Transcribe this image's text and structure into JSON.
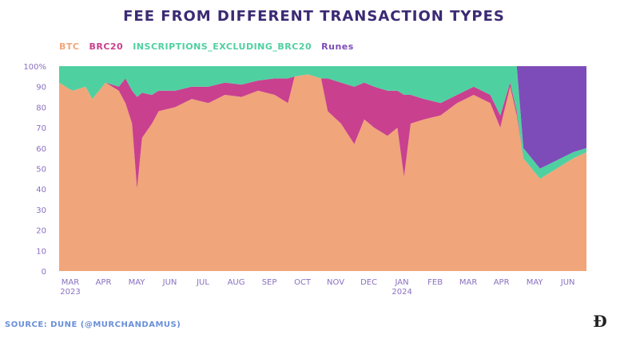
{
  "page": {
    "title": "FEE FROM DIFFERENT TRANSACTION TYPES",
    "source": "SOURCE: DUNE (@MURCHANDAMUS)"
  },
  "colors": {
    "btc": "#f0a57a",
    "brc20": "#c9408f",
    "inscriptions": "#4fd0a0",
    "runes": "#7d4cb8",
    "axis_text": "#8a6fc0",
    "title": "#3b2a73"
  },
  "chart_data": {
    "type": "area",
    "stacked": true,
    "y_unit": "%",
    "ylim": [
      0,
      100
    ],
    "y_ticks": [
      "0",
      "10",
      "20",
      "30",
      "40",
      "50",
      "60",
      "70",
      "80",
      "90",
      "100%"
    ],
    "x_ticks": [
      {
        "label": "MAR",
        "sub": "2023"
      },
      {
        "label": "APR",
        "sub": ""
      },
      {
        "label": "MAY",
        "sub": ""
      },
      {
        "label": "JUN",
        "sub": ""
      },
      {
        "label": "JUL",
        "sub": ""
      },
      {
        "label": "AUG",
        "sub": ""
      },
      {
        "label": "SEP",
        "sub": ""
      },
      {
        "label": "OCT",
        "sub": ""
      },
      {
        "label": "NOV",
        "sub": ""
      },
      {
        "label": "DEC",
        "sub": ""
      },
      {
        "label": "JAN",
        "sub": "2024"
      },
      {
        "label": "FEB",
        "sub": ""
      },
      {
        "label": "MAR",
        "sub": ""
      },
      {
        "label": "APR",
        "sub": ""
      },
      {
        "label": "MAY",
        "sub": ""
      },
      {
        "label": "JUN",
        "sub": ""
      }
    ],
    "x_range": [
      0,
      15.9
    ],
    "legend": [
      "BTC",
      "BRC20",
      "INSCRIPTIONS_EXCLUDING_BRC20",
      "Runes"
    ],
    "legend_position": "top-left",
    "series": [
      {
        "name": "BTC",
        "x": [
          0,
          0.4,
          0.8,
          1.0,
          1.4,
          1.8,
          2.0,
          2.2,
          2.35,
          2.5,
          2.8,
          3.0,
          3.5,
          4.0,
          4.5,
          5.0,
          5.5,
          6.0,
          6.5,
          6.9,
          7.1,
          7.5,
          7.9,
          8.1,
          8.5,
          8.9,
          9.2,
          9.5,
          9.9,
          10.2,
          10.4,
          10.6,
          11.0,
          11.5,
          12.0,
          12.5,
          13.0,
          13.3,
          13.6,
          13.8,
          14.0,
          14.5,
          15.0,
          15.5,
          15.9
        ],
        "values": [
          92,
          88,
          90,
          84,
          92,
          88,
          82,
          72,
          40,
          65,
          72,
          78,
          80,
          84,
          82,
          86,
          85,
          88,
          86,
          82,
          95,
          96,
          94,
          78,
          72,
          62,
          74,
          70,
          66,
          70,
          46,
          72,
          74,
          76,
          82,
          86,
          82,
          70,
          90,
          76,
          55,
          45,
          50,
          55,
          58
        ]
      },
      {
        "name": "BRC20",
        "x": [
          0,
          0.4,
          0.8,
          1.0,
          1.4,
          1.8,
          2.0,
          2.2,
          2.35,
          2.5,
          2.8,
          3.0,
          3.5,
          4.0,
          4.5,
          5.0,
          5.5,
          6.0,
          6.5,
          6.9,
          7.1,
          7.5,
          7.9,
          8.1,
          8.5,
          8.9,
          9.2,
          9.5,
          9.9,
          10.2,
          10.4,
          10.6,
          11.0,
          11.5,
          12.0,
          12.5,
          13.0,
          13.3,
          13.6,
          13.8,
          14.0,
          14.5,
          15.0,
          15.5,
          15.9
        ],
        "values": [
          0,
          0,
          0,
          0,
          0,
          2,
          12,
          16,
          45,
          22,
          14,
          10,
          8,
          6,
          8,
          6,
          6,
          5,
          8,
          12,
          0,
          0,
          0,
          16,
          20,
          28,
          18,
          20,
          22,
          18,
          40,
          14,
          10,
          6,
          4,
          4,
          4,
          6,
          2,
          2,
          0,
          0,
          0,
          0,
          0
        ]
      },
      {
        "name": "INSCRIPTIONS_EXCLUDING_BRC20",
        "x": [
          0,
          0.4,
          0.8,
          1.0,
          1.4,
          1.8,
          2.0,
          2.2,
          2.35,
          2.5,
          2.8,
          3.0,
          3.5,
          4.0,
          4.5,
          5.0,
          5.5,
          6.0,
          6.5,
          6.9,
          7.1,
          7.5,
          7.9,
          8.1,
          8.5,
          8.9,
          9.2,
          9.5,
          9.9,
          10.2,
          10.4,
          10.6,
          11.0,
          11.5,
          12.0,
          12.5,
          13.0,
          13.3,
          13.6,
          13.8,
          14.0,
          14.5,
          15.0,
          15.5,
          15.9
        ],
        "values": [
          8,
          12,
          10,
          16,
          8,
          10,
          6,
          12,
          15,
          13,
          14,
          12,
          12,
          10,
          10,
          8,
          9,
          7,
          6,
          6,
          5,
          4,
          6,
          6,
          8,
          10,
          8,
          10,
          12,
          12,
          14,
          14,
          16,
          18,
          14,
          10,
          14,
          24,
          8,
          22,
          5,
          5,
          4,
          3,
          2
        ]
      },
      {
        "name": "Runes",
        "x": [
          0,
          0.4,
          0.8,
          1.0,
          1.4,
          1.8,
          2.0,
          2.2,
          2.35,
          2.5,
          2.8,
          3.0,
          3.5,
          4.0,
          4.5,
          5.0,
          5.5,
          6.0,
          6.5,
          6.9,
          7.1,
          7.5,
          7.9,
          8.1,
          8.5,
          8.9,
          9.2,
          9.5,
          9.9,
          10.2,
          10.4,
          10.6,
          11.0,
          11.5,
          12.0,
          12.5,
          13.0,
          13.3,
          13.6,
          13.8,
          14.0,
          14.5,
          15.0,
          15.5,
          15.9
        ],
        "values": [
          0,
          0,
          0,
          0,
          0,
          0,
          0,
          0,
          0,
          0,
          0,
          0,
          0,
          0,
          0,
          0,
          0,
          0,
          0,
          0,
          0,
          0,
          0,
          0,
          0,
          0,
          0,
          0,
          0,
          0,
          0,
          0,
          0,
          0,
          0,
          0,
          0,
          0,
          0,
          0,
          40,
          50,
          46,
          42,
          40
        ]
      }
    ]
  }
}
